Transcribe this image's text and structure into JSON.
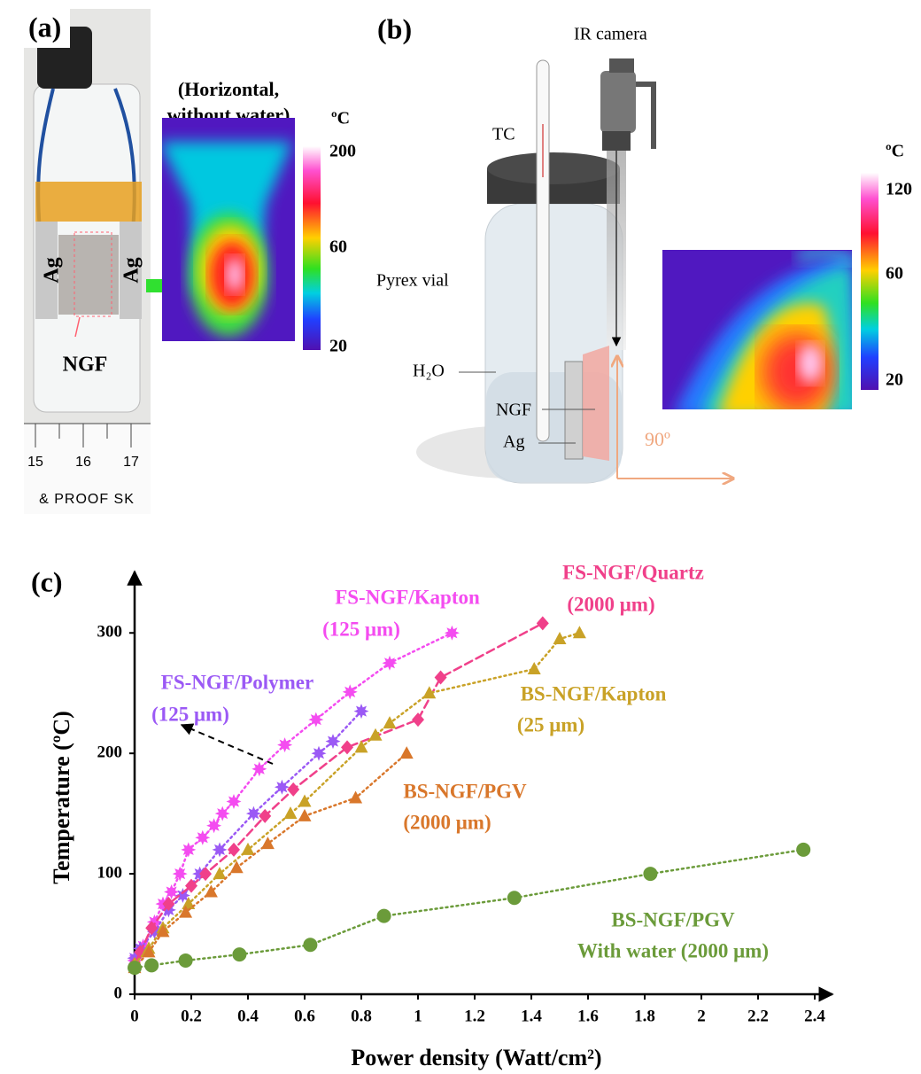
{
  "panel_a": {
    "label": "(a)",
    "title_lines": [
      "(Horizontal,",
      "without water)"
    ],
    "electrode_left": "Ag",
    "electrode_right": "Ag",
    "film": "NGF",
    "ruler": [
      "15",
      "16",
      "17"
    ],
    "ruler_print": "& PROOF SK",
    "colorbar_unit": "ºC",
    "colorbar_ticks": [
      200,
      60,
      20
    ]
  },
  "panel_b": {
    "label": "(b)",
    "camera": "IR camera",
    "thermocouple": "TC",
    "vial": "Pyrex vial",
    "water": "H₂O",
    "film": "NGF",
    "electrode": "Ag",
    "angle": "90º",
    "colorbar_unit": "ºC",
    "colorbar_ticks": [
      120,
      60,
      20
    ]
  },
  "chart_data": {
    "type": "line",
    "label": "(c)",
    "x_label": "Power density (Watt/cm²)",
    "y_label": "Temperature (ºC)",
    "xlim": [
      0,
      2.45
    ],
    "ylim": [
      0,
      348
    ],
    "xticks": [
      0,
      0.2,
      0.4,
      0.6,
      0.8,
      1,
      1.2,
      1.4,
      1.6,
      1.8,
      2,
      2.2,
      2.4
    ],
    "yticks": [
      0,
      100,
      200,
      300
    ],
    "grid": false,
    "series": [
      {
        "name": "FS-NGF/Kapton",
        "note": "(125 μm)",
        "color": "#f44cf0",
        "marker": "star",
        "line_style": "dotted",
        "x": [
          0,
          0.03,
          0.07,
          0.1,
          0.13,
          0.16,
          0.19,
          0.24,
          0.28,
          0.31,
          0.35,
          0.44,
          0.53,
          0.64,
          0.76,
          0.9,
          1.12
        ],
        "values": [
          28,
          40,
          60,
          75,
          85,
          100,
          120,
          130,
          140,
          150,
          160,
          187,
          207,
          228,
          251,
          275,
          300
        ]
      },
      {
        "name": "FS-NGF/Polymer",
        "note": "(125 μm)",
        "color": "#9b59f5",
        "marker": "star",
        "line_style": "dotted",
        "x": [
          0,
          0.02,
          0.07,
          0.12,
          0.17,
          0.23,
          0.3,
          0.42,
          0.52,
          0.65,
          0.7,
          0.8
        ],
        "values": [
          30,
          38,
          52,
          70,
          82,
          100,
          120,
          150,
          172,
          200,
          210,
          235
        ]
      },
      {
        "name": "FS-NGF/Quartz",
        "note": "(2000 μm)",
        "color": "#f0408a",
        "marker": "diamond",
        "line_style": "dashed",
        "x": [
          0,
          0.02,
          0.06,
          0.12,
          0.2,
          0.25,
          0.35,
          0.46,
          0.56,
          0.75,
          1.0,
          1.08,
          1.44
        ],
        "values": [
          25,
          35,
          55,
          75,
          90,
          100,
          120,
          148,
          170,
          205,
          228,
          263,
          308
        ]
      },
      {
        "name": "BS-NGF/Kapton",
        "note": "(25 μm)",
        "color": "#c9a227",
        "marker": "triangle",
        "line_style": "dotted",
        "x": [
          0,
          0.05,
          0.1,
          0.19,
          0.3,
          0.4,
          0.55,
          0.6,
          0.8,
          0.85,
          0.9,
          1.04,
          1.41,
          1.5,
          1.57
        ],
        "values": [
          25,
          38,
          55,
          75,
          100,
          120,
          150,
          160,
          205,
          215,
          225,
          250,
          270,
          295,
          300
        ]
      },
      {
        "name": "BS-NGF/PGV",
        "note": "(2000 μm)",
        "color": "#d9772b",
        "marker": "triangle",
        "line_style": "dotted",
        "x": [
          0,
          0.05,
          0.1,
          0.18,
          0.27,
          0.36,
          0.47,
          0.6,
          0.78,
          0.96
        ],
        "values": [
          22,
          35,
          52,
          68,
          85,
          105,
          125,
          148,
          163,
          200
        ]
      },
      {
        "name": "BS-NGF/PGV",
        "note": "With water (2000 μm)",
        "color": "#6b9b3a",
        "marker": "circle",
        "line_style": "dotted",
        "x": [
          0,
          0.06,
          0.18,
          0.37,
          0.62,
          0.88,
          1.34,
          1.82,
          2.36
        ],
        "values": [
          22,
          24,
          28,
          33,
          41,
          65,
          80,
          100,
          120
        ]
      }
    ]
  }
}
